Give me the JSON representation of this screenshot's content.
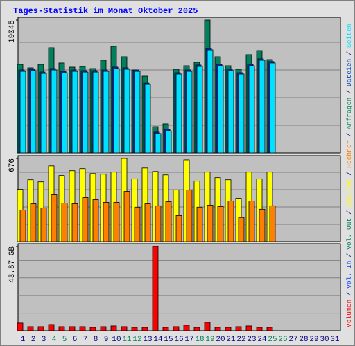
{
  "legend_separator": "/",
  "chart_data": [
    {
      "type": "bar",
      "title": "Tages-Statistik im Monat Oktober 2025",
      "ylim": [
        0,
        19045
      ],
      "yticks": [
        19045
      ],
      "series": [
        {
          "name": "Anfragen",
          "color": "#00805c",
          "values": [
            12700,
            12200,
            12700,
            15080,
            12900,
            12300,
            12400,
            12100,
            13300,
            15280,
            13790,
            11900,
            11010,
            3770,
            4170,
            12000,
            12500,
            13000,
            19045,
            13790,
            12500,
            12000,
            14090,
            14680,
            13390,
            null,
            null,
            null,
            null,
            null,
            null
          ]
        },
        {
          "name": "Dateien",
          "color": "#0040c0",
          "values": [
            11900,
            12000,
            11600,
            12100,
            11700,
            11900,
            11800,
            11800,
            11900,
            12300,
            12200,
            11900,
            10000,
            2980,
            3370,
            11500,
            11900,
            12600,
            14980,
            12700,
            12000,
            11500,
            12700,
            13490,
            13100,
            null,
            null,
            null,
            null,
            null,
            null
          ]
        },
        {
          "name": "Seiten",
          "color": "#00e0ff",
          "values": [
            11700,
            11800,
            11400,
            11900,
            11500,
            11700,
            11600,
            11600,
            11700,
            12100,
            12000,
            11700,
            9820,
            2780,
            3170,
            11310,
            11700,
            12400,
            14780,
            12500,
            11800,
            11310,
            12500,
            13290,
            12900,
            null,
            null,
            null,
            null,
            null,
            null
          ]
        }
      ]
    },
    {
      "type": "bar",
      "ylim": [
        0,
        676
      ],
      "yticks": [
        676
      ],
      "series": [
        {
          "name": "Besuche",
          "color": "#ffff00",
          "values": [
            425,
            503,
            486,
            615,
            537,
            576,
            593,
            553,
            548,
            565,
            676,
            509,
            598,
            570,
            542,
            419,
            665,
            492,
            565,
            520,
            503,
            352,
            565,
            509,
            565,
            null,
            null,
            null,
            null,
            null,
            null
          ]
        },
        {
          "name": "Rechner",
          "color": "#ff8000",
          "values": [
            257,
            307,
            274,
            380,
            313,
            307,
            358,
            341,
            319,
            319,
            408,
            280,
            307,
            291,
            324,
            212,
            419,
            280,
            296,
            285,
            330,
            196,
            330,
            263,
            291,
            null,
            null,
            null,
            null,
            null,
            null
          ]
        }
      ]
    },
    {
      "type": "bar",
      "ylim": [
        0,
        43.87
      ],
      "yticks": [
        {
          "value": 43.87,
          "label": "43.87 GB"
        }
      ],
      "categories": [
        1,
        2,
        3,
        4,
        5,
        6,
        7,
        8,
        9,
        10,
        11,
        12,
        13,
        14,
        15,
        16,
        17,
        18,
        19,
        20,
        21,
        22,
        23,
        24,
        25,
        26,
        27,
        28,
        29,
        30,
        31
      ],
      "category_colors": [
        "#000080",
        "#000080",
        "#000080",
        "#00805c",
        "#00805c",
        "#000080",
        "#000080",
        "#000080",
        "#000080",
        "#000080",
        "#00805c",
        "#00805c",
        "#000080",
        "#000080",
        "#000080",
        "#000080",
        "#000080",
        "#00805c",
        "#00805c",
        "#000080",
        "#000080",
        "#000080",
        "#000080",
        "#000080",
        "#00805c",
        "#00805c",
        "#000080",
        "#000080",
        "#000080",
        "#000080",
        "#000080"
      ],
      "series": [
        {
          "name": "Volumen",
          "color": "#ff0000",
          "values": [
            3.99,
            2.18,
            2.18,
            3.26,
            2.18,
            2.18,
            2.18,
            1.81,
            2.18,
            2.54,
            2.18,
            1.81,
            1.81,
            43.87,
            1.81,
            2.18,
            2.9,
            1.81,
            4.35,
            1.81,
            1.81,
            2.18,
            2.54,
            1.81,
            1.81,
            null,
            null,
            null,
            null,
            null,
            null
          ]
        },
        {
          "name": "Vol. In",
          "color": "#0040ff"
        },
        {
          "name": "Vol. Out",
          "color": "#00805c"
        }
      ]
    }
  ]
}
